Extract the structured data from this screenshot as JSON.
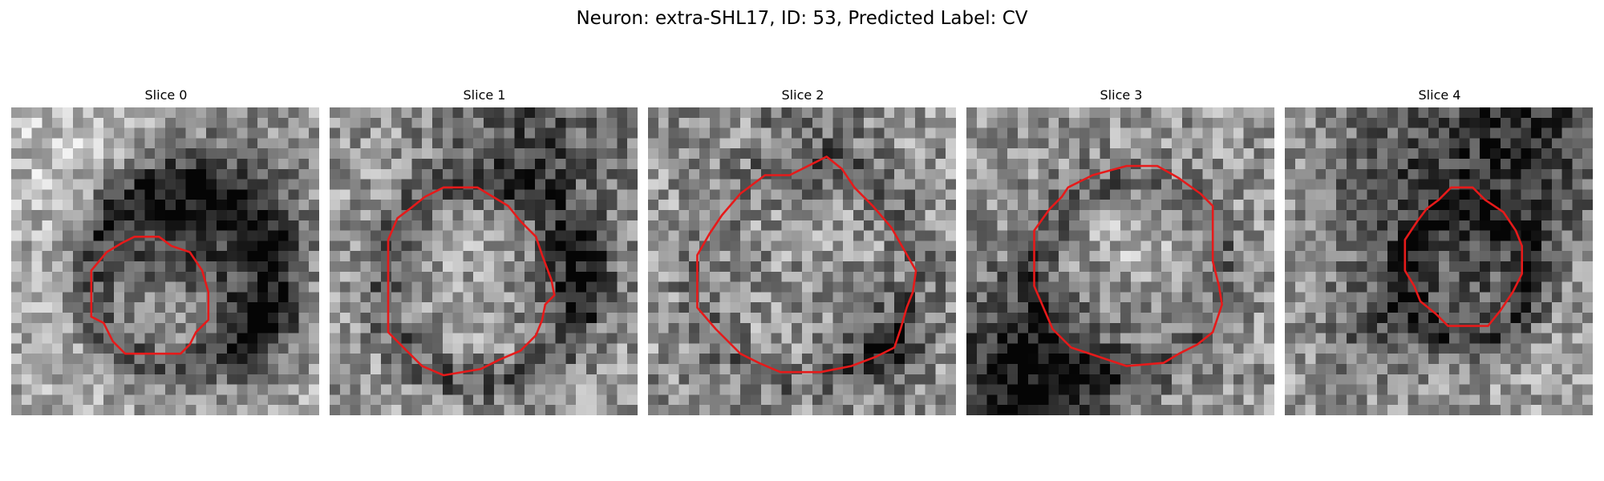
{
  "figure": {
    "title": "Neuron: extra-SHL17, ID: 53, Predicted Label: CV",
    "contour_color": "#e61a1a"
  },
  "slices": [
    {
      "title": "Slice 0"
    },
    {
      "title": "Slice 1"
    },
    {
      "title": "Slice 2"
    },
    {
      "title": "Slice 3"
    },
    {
      "title": "Slice 4"
    }
  ]
}
